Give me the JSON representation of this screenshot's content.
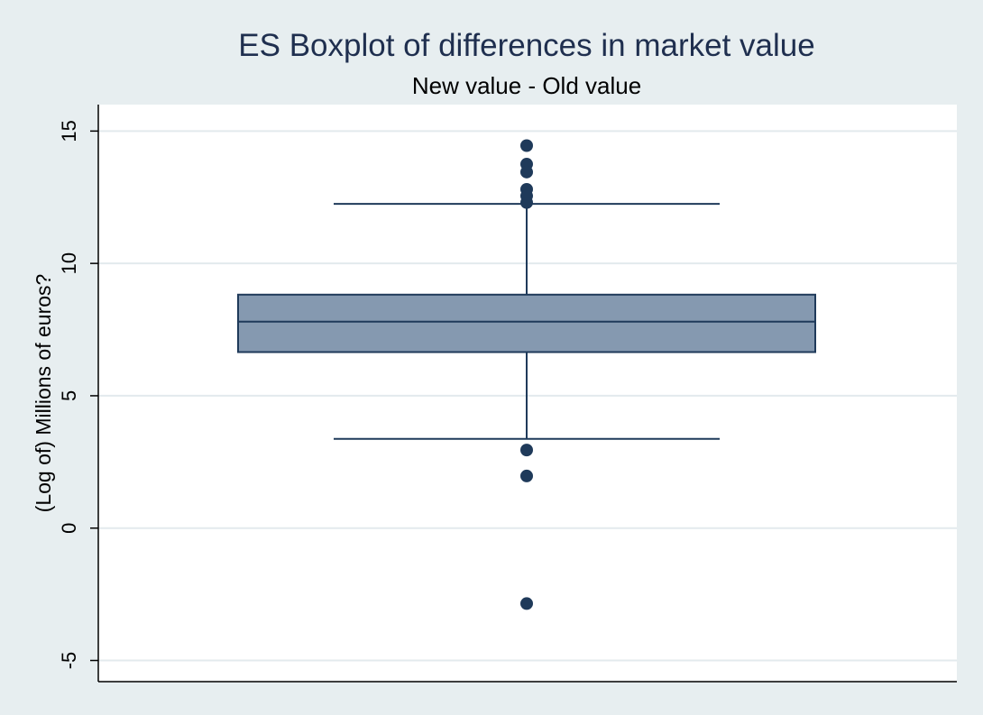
{
  "chart_data": {
    "type": "boxplot",
    "title": "ES Boxplot of differences in market value",
    "subtitle": "New value - Old value",
    "ylabel": "(Log of) Millions of euros?",
    "xlabel": "",
    "ylim": [
      -5.8,
      16.0
    ],
    "yticks": [
      15,
      10,
      5,
      0,
      -5
    ],
    "ytick_labels": [
      "15",
      "10",
      "5",
      "0",
      "-5"
    ],
    "grid": true,
    "box": {
      "q1": 6.65,
      "median": 7.8,
      "q3": 8.82,
      "whisker_low": 3.37,
      "whisker_high": 12.25
    },
    "outliers": [
      14.45,
      13.75,
      13.45,
      12.8,
      12.55,
      12.3,
      2.95,
      1.97,
      -2.85
    ],
    "colors": {
      "background": "#e7eef0",
      "plot_background": "#ffffff",
      "box_fill": "#8599b0",
      "line": "#1f3a5a",
      "marker": "#1f3a5a",
      "grid": "#e3eaed",
      "title": "#1f2f4f"
    }
  }
}
